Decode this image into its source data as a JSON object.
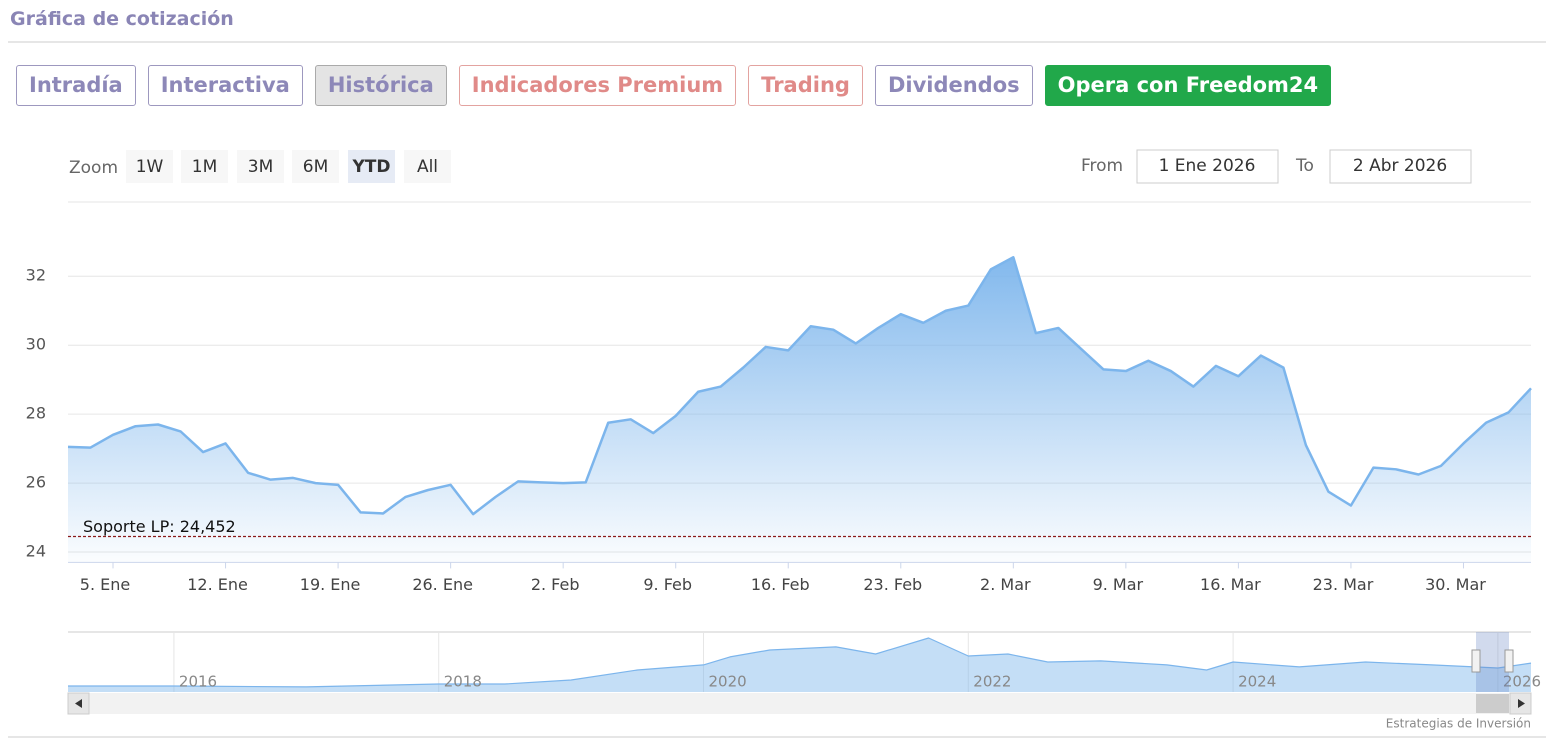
{
  "header": {
    "title": "Gráfica de cotización"
  },
  "tabs": [
    "Intradía",
    "Interactiva",
    "Histórica",
    "Indicadores Premium",
    "Trading",
    "Dividendos",
    "Opera con Freedom24"
  ],
  "zoom": {
    "label": "Zoom",
    "buttons": [
      "1W",
      "1M",
      "3M",
      "6M",
      "YTD",
      "All"
    ]
  },
  "range": {
    "from_label": "From",
    "from": "1 Ene 2026",
    "to_label": "To",
    "to": "2 Abr 2026"
  },
  "credit": "Estrategias de Inversión",
  "chart_data": [
    {
      "type": "area",
      "color": "#7cb5ec",
      "categories": [
        null,
        null,
        "5. Ene",
        null,
        null,
        null,
        null,
        "12. Ene",
        null,
        null,
        null,
        null,
        "19. Ene",
        null,
        null,
        null,
        null,
        "26. Ene",
        null,
        null,
        null,
        null,
        "2. Feb",
        null,
        null,
        null,
        null,
        "9. Feb",
        null,
        null,
        null,
        null,
        "16. Feb",
        null,
        null,
        null,
        null,
        "23. Feb",
        null,
        null,
        null,
        null,
        "2. Mar",
        null,
        null,
        null,
        null,
        "9. Mar",
        null,
        null,
        null,
        null,
        "16. Mar",
        null,
        null,
        null,
        null,
        "23. Mar",
        null,
        null,
        null,
        null,
        "30. Mar",
        null,
        null,
        null
      ],
      "values": [
        27.05,
        27.03,
        27.4,
        27.65,
        27.7,
        27.5,
        26.9,
        27.15,
        26.3,
        26.1,
        26.15,
        26.0,
        25.95,
        25.15,
        25.12,
        25.6,
        25.8,
        25.95,
        25.1,
        25.6,
        26.05,
        26.02,
        26.0,
        26.02,
        27.75,
        27.85,
        27.45,
        27.95,
        28.65,
        28.8,
        29.35,
        29.95,
        29.85,
        30.55,
        30.45,
        30.05,
        30.5,
        30.9,
        30.65,
        31.0,
        31.15,
        32.2,
        32.55,
        30.35,
        30.5,
        29.9,
        29.3,
        29.25,
        29.55,
        29.25,
        28.8,
        29.4,
        29.1,
        29.7,
        29.35,
        27.1,
        25.75,
        25.35,
        26.45,
        26.4,
        26.25,
        26.5,
        27.15,
        27.75,
        28.05,
        28.75
      ],
      "ylim": [
        23.7,
        34.2
      ],
      "yticks": [
        24,
        26,
        28,
        30,
        32
      ],
      "grid": true,
      "plot_line": {
        "value": 24.452,
        "label": "Soporte LP: 24,452",
        "color": "#8b1a1a"
      }
    },
    {
      "type": "area",
      "color": "#7cb5ec",
      "x": [
        2015.2,
        2016,
        2017,
        2018,
        2018.5,
        2019,
        2019.5,
        2020,
        2020.2,
        2020.5,
        2021,
        2021.3,
        2021.7,
        2022,
        2022.3,
        2022.6,
        2023,
        2023.5,
        2023.8,
        2024,
        2024.5,
        2025,
        2025.5,
        2026,
        2026.25
      ],
      "values": [
        17.7,
        17.7,
        17.3,
        18.6,
        18.6,
        20.4,
        24.9,
        27.2,
        30.8,
        33.9,
        35.3,
        32.1,
        39.3,
        31.2,
        32.1,
        28.5,
        29,
        27.2,
        24.9,
        28.5,
        26.3,
        28.5,
        27.2,
        25.8,
        28
      ],
      "xlim": [
        2015.2,
        2026.25
      ],
      "xticks": [
        2016,
        2018,
        2020,
        2022,
        2024,
        2026
      ],
      "ylim": [
        15,
        42
      ]
    }
  ]
}
